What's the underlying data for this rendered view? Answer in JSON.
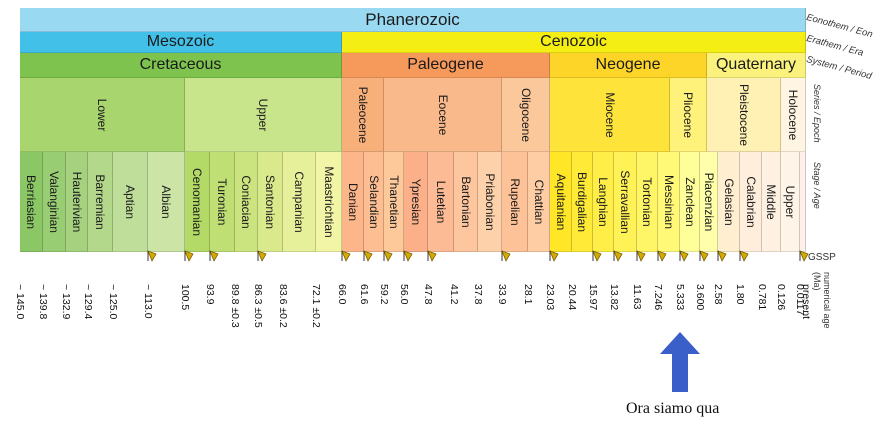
{
  "colors": {
    "phanerozoic": "#9ad9f2",
    "mesozoic": "#43c0e8",
    "cenozoic": "#f4ee14",
    "cretaceous": "#7fc34f",
    "paleogene": "#f59a5a",
    "neogene": "#fdd528",
    "quaternary": "#fbf27e",
    "gssp_marker": "#d4a900",
    "arrow": "#3a5fc8"
  },
  "eon": [
    {
      "label": "Phanerozoic"
    }
  ],
  "era": [
    {
      "label": "Mesozoic"
    },
    {
      "label": "Cenozoic"
    }
  ],
  "period": [
    {
      "label": "Cretaceous"
    },
    {
      "label": "Paleogene"
    },
    {
      "label": "Neogene"
    },
    {
      "label": "Quaternary"
    }
  ],
  "epoch": [
    {
      "label": "Lower"
    },
    {
      "label": "Upper"
    },
    {
      "label": "Paleocene"
    },
    {
      "label": "Eocene"
    },
    {
      "label": "Oligocene"
    },
    {
      "label": "Miocene"
    },
    {
      "label": "Pliocene"
    },
    {
      "label": "Pleistocene"
    },
    {
      "label": "Holocene"
    }
  ],
  "stages": [
    {
      "label": "Berriasian"
    },
    {
      "label": "Valanginian"
    },
    {
      "label": "Hauterivian"
    },
    {
      "label": "Barremian"
    },
    {
      "label": "Aptian"
    },
    {
      "label": "Albian"
    },
    {
      "label": "Cenomanian"
    },
    {
      "label": "Turonian"
    },
    {
      "label": "Coniacian"
    },
    {
      "label": "Santonian"
    },
    {
      "label": "Campanian"
    },
    {
      "label": "Maastrichtian"
    },
    {
      "label": "Danian"
    },
    {
      "label": "Selandian"
    },
    {
      "label": "Thanetian"
    },
    {
      "label": "Ypresian"
    },
    {
      "label": "Lutetian"
    },
    {
      "label": "Bartonian"
    },
    {
      "label": "Priabonian"
    },
    {
      "label": "Rupelian"
    },
    {
      "label": "Chattian"
    },
    {
      "label": "Aquitanian"
    },
    {
      "label": "Burdigalian"
    },
    {
      "label": "Langhian"
    },
    {
      "label": "Serravallian"
    },
    {
      "label": "Tortonian"
    },
    {
      "label": "Messinian"
    },
    {
      "label": "Zanclean"
    },
    {
      "label": "Piacenzian"
    },
    {
      "label": "Gelasian"
    },
    {
      "label": "Calabrian"
    },
    {
      "label": "Middle"
    },
    {
      "label": "Upper"
    },
    {
      "label": ""
    }
  ],
  "ages": [
    "~ 145.0",
    "~ 139.8",
    "~ 132.9",
    "~ 129.4",
    "~ 125.0",
    "~ 113.0",
    "100.5",
    "93.9",
    "89.8 ±0.3",
    "86.3 ±0.5",
    "83.6 ±0.2",
    "72.1 ±0.2",
    "66.0",
    "61.6",
    "59.2",
    "56.0",
    "47.8",
    "41.2",
    "37.8",
    "33.9",
    "28.1",
    "23.03",
    "20.44",
    "15.97",
    "13.82",
    "11.63",
    "7.246",
    "5.333",
    "3.600",
    "2.58",
    "1.80",
    "0.781",
    "0.126",
    "0.0117",
    "present"
  ],
  "row_titles": {
    "eon": "Eonothem / Eon",
    "era": "Erathem / Era",
    "period": "System / Period",
    "epoch": "Series / Epoch",
    "stage": "Stage / Age",
    "gssp": "GSSP",
    "age": "numerical age (Ma)"
  },
  "annotation": {
    "caption": "Ora siamo qua"
  }
}
